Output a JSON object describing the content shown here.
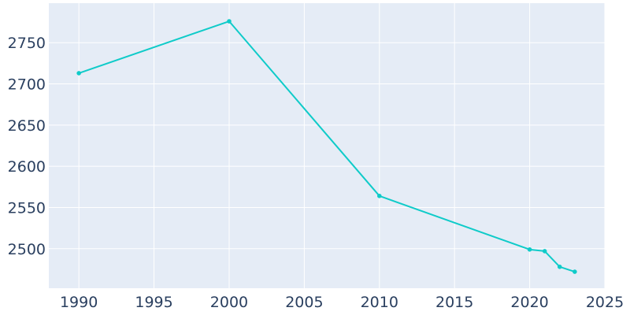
{
  "chart_data": {
    "type": "line",
    "title": "",
    "xlabel": "",
    "ylabel": "",
    "x": [
      1990,
      2000,
      2010,
      2020,
      2021,
      2022,
      2023
    ],
    "series": [
      {
        "values": [
          2713,
          2776,
          2564,
          2499,
          2497,
          2478,
          2472
        ]
      }
    ],
    "xlim": [
      1988,
      2025
    ],
    "ylim": [
      2452,
      2798
    ],
    "xticks": [
      1990,
      1995,
      2000,
      2005,
      2010,
      2015,
      2020,
      2025
    ],
    "yticks": [
      2500,
      2550,
      2600,
      2650,
      2700,
      2750
    ],
    "grid": true,
    "legend": "none",
    "colors": {
      "line": "#0fcbc9",
      "plot_background": "#e5ecf6",
      "grid": "#ffffff",
      "tick_text": "#2a3f5f"
    }
  }
}
